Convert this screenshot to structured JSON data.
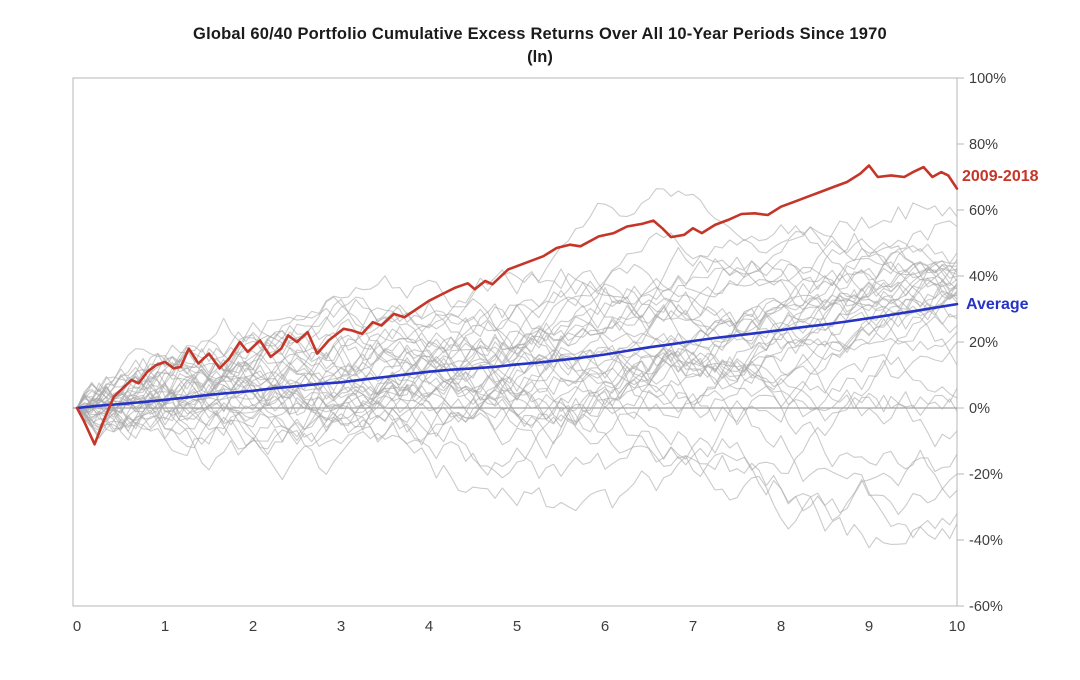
{
  "colors": {
    "red": "#c53528",
    "blue": "#2633c4",
    "gray_line": "#a9a9a9",
    "frame": "#b7b7b7",
    "zero_line": "#8c8c8c",
    "tick_text": "#3d3d3d",
    "title_text": "#1b1b1b"
  },
  "chart_data": {
    "type": "line",
    "title": "Global 60/40 Portfolio Cumulative Excess Returns Over All 10-Year Periods Since 1970",
    "subtitle": "(ln)",
    "xlabel": "",
    "ylabel": "",
    "xlim": [
      0,
      10
    ],
    "ylim": [
      -60,
      100
    ],
    "grid": "zero-line-only",
    "legend_position": "right-of-lines",
    "x_axis": {
      "ticks": [
        {
          "v": 0,
          "label": "0"
        },
        {
          "v": 1,
          "label": "1"
        },
        {
          "v": 2,
          "label": "2"
        },
        {
          "v": 3,
          "label": "3"
        },
        {
          "v": 4,
          "label": "4"
        },
        {
          "v": 5,
          "label": "5"
        },
        {
          "v": 6,
          "label": "6"
        },
        {
          "v": 7,
          "label": "7"
        },
        {
          "v": 8,
          "label": "8"
        },
        {
          "v": 9,
          "label": "9"
        },
        {
          "v": 10,
          "label": "10"
        }
      ]
    },
    "y_axis": {
      "ticks": [
        {
          "v": 100,
          "label": "100%"
        },
        {
          "v": 80,
          "label": "80%"
        },
        {
          "v": 60,
          "label": "60%"
        },
        {
          "v": 40,
          "label": "40%"
        },
        {
          "v": 20,
          "label": "20%"
        },
        {
          "v": 0,
          "label": "0%"
        },
        {
          "v": -20,
          "label": "-20%"
        },
        {
          "v": -40,
          "label": "-40%"
        },
        {
          "v": -60,
          "label": "-60%"
        }
      ]
    },
    "series": [
      {
        "name": "2009-2018",
        "color": "#c53528",
        "width": 2.6,
        "points": [
          [
            0,
            0
          ],
          [
            0.08,
            -4
          ],
          [
            0.2,
            -11
          ],
          [
            0.3,
            -4
          ],
          [
            0.42,
            3.5
          ],
          [
            0.52,
            6
          ],
          [
            0.62,
            8.5
          ],
          [
            0.7,
            7.5
          ],
          [
            0.8,
            11
          ],
          [
            0.9,
            13
          ],
          [
            1.0,
            14
          ],
          [
            1.1,
            12
          ],
          [
            1.18,
            12.5
          ],
          [
            1.27,
            18
          ],
          [
            1.38,
            13.5
          ],
          [
            1.5,
            16.5
          ],
          [
            1.62,
            12
          ],
          [
            1.73,
            15
          ],
          [
            1.85,
            20
          ],
          [
            1.94,
            17
          ],
          [
            2.08,
            20.5
          ],
          [
            2.2,
            15.5
          ],
          [
            2.32,
            18
          ],
          [
            2.4,
            22
          ],
          [
            2.5,
            20
          ],
          [
            2.62,
            23
          ],
          [
            2.73,
            16.5
          ],
          [
            2.86,
            20.5
          ],
          [
            3.03,
            24
          ],
          [
            3.12,
            23.5
          ],
          [
            3.24,
            22.5
          ],
          [
            3.36,
            26
          ],
          [
            3.46,
            25
          ],
          [
            3.6,
            28.5
          ],
          [
            3.72,
            27.5
          ],
          [
            3.86,
            30
          ],
          [
            4.0,
            32.5
          ],
          [
            4.15,
            34.5
          ],
          [
            4.3,
            36.5
          ],
          [
            4.44,
            37.8
          ],
          [
            4.52,
            36
          ],
          [
            4.64,
            38.5
          ],
          [
            4.72,
            37.5
          ],
          [
            4.9,
            42
          ],
          [
            5.1,
            44
          ],
          [
            5.3,
            46
          ],
          [
            5.45,
            48.5
          ],
          [
            5.6,
            49.5
          ],
          [
            5.72,
            49
          ],
          [
            5.93,
            52
          ],
          [
            6.1,
            53
          ],
          [
            6.25,
            55
          ],
          [
            6.42,
            55.8
          ],
          [
            6.55,
            56.8
          ],
          [
            6.65,
            54.5
          ],
          [
            6.75,
            51.8
          ],
          [
            6.9,
            52.5
          ],
          [
            7.0,
            54.5
          ],
          [
            7.1,
            53
          ],
          [
            7.25,
            55.5
          ],
          [
            7.4,
            57
          ],
          [
            7.55,
            58.8
          ],
          [
            7.7,
            59
          ],
          [
            7.85,
            58.5
          ],
          [
            8.0,
            61
          ],
          [
            8.15,
            62.5
          ],
          [
            8.3,
            64
          ],
          [
            8.45,
            65.5
          ],
          [
            8.6,
            67
          ],
          [
            8.75,
            68.5
          ],
          [
            8.9,
            71
          ],
          [
            9.0,
            73.5
          ],
          [
            9.1,
            70
          ],
          [
            9.25,
            70.5
          ],
          [
            9.4,
            70
          ],
          [
            9.5,
            71.5
          ],
          [
            9.62,
            73
          ],
          [
            9.72,
            70
          ],
          [
            9.82,
            71.5
          ],
          [
            9.9,
            70.5
          ],
          [
            10,
            66.5
          ]
        ]
      },
      {
        "name": "Average",
        "color": "#2633c4",
        "width": 2.6,
        "points": [
          [
            0,
            0
          ],
          [
            0.25,
            0.7
          ],
          [
            0.5,
            1.2
          ],
          [
            0.75,
            1.8
          ],
          [
            1,
            2.5
          ],
          [
            1.25,
            3.2
          ],
          [
            1.5,
            4
          ],
          [
            1.75,
            4.6
          ],
          [
            2,
            5.2
          ],
          [
            2.25,
            6
          ],
          [
            2.5,
            6.6
          ],
          [
            2.75,
            7.3
          ],
          [
            3,
            7.8
          ],
          [
            3.25,
            8.6
          ],
          [
            3.5,
            9.4
          ],
          [
            3.75,
            10.2
          ],
          [
            4,
            11
          ],
          [
            4.25,
            11.6
          ],
          [
            4.5,
            12
          ],
          [
            4.75,
            12.5
          ],
          [
            5,
            13.2
          ],
          [
            5.25,
            13.8
          ],
          [
            5.5,
            14.5
          ],
          [
            5.75,
            15.3
          ],
          [
            6,
            16.2
          ],
          [
            6.25,
            17.3
          ],
          [
            6.5,
            18.4
          ],
          [
            6.75,
            19.3
          ],
          [
            7,
            20.3
          ],
          [
            7.25,
            21.2
          ],
          [
            7.5,
            22
          ],
          [
            7.75,
            22.8
          ],
          [
            8,
            23.6
          ],
          [
            8.25,
            24.5
          ],
          [
            8.5,
            25.3
          ],
          [
            8.75,
            26.2
          ],
          [
            9,
            27.2
          ],
          [
            9.25,
            28.2
          ],
          [
            9.5,
            29.3
          ],
          [
            9.75,
            30.4
          ],
          [
            10,
            31.5
          ]
        ]
      }
    ],
    "background_series": {
      "description": "gray spaghetti lines: one per rolling 10-year period, all start at 0%; [seed, end_value_pct, volatility]",
      "color": "#a9a9a9",
      "opacity": 0.6,
      "width": 1.1,
      "n_points": 120,
      "soft_clamp": [
        -50,
        66
      ],
      "items": [
        [
          1,
          58,
          2.7
        ],
        [
          2,
          55,
          2.5
        ],
        [
          3,
          47,
          2.8
        ],
        [
          4,
          45,
          2.4
        ],
        [
          5,
          44,
          2.9
        ],
        [
          6,
          43,
          2.3
        ],
        [
          7,
          42.5,
          2.6
        ],
        [
          8,
          42,
          2.2
        ],
        [
          9,
          41,
          2.5
        ],
        [
          10,
          40.5,
          2.8
        ],
        [
          11,
          40,
          2.2
        ],
        [
          12,
          39,
          2.6
        ],
        [
          13,
          38.5,
          2.3
        ],
        [
          14,
          38,
          2.7
        ],
        [
          15,
          37.5,
          2.1
        ],
        [
          16,
          37,
          2.4
        ],
        [
          17,
          36.5,
          2.8
        ],
        [
          18,
          36,
          2.2
        ],
        [
          19,
          35.5,
          2.5
        ],
        [
          20,
          35,
          2.3
        ],
        [
          21,
          34.5,
          2.6
        ],
        [
          22,
          34,
          2.4
        ],
        [
          23,
          33,
          2.2
        ],
        [
          24,
          32,
          2.5
        ],
        [
          25,
          28,
          2.7
        ],
        [
          26,
          27,
          2.4
        ],
        [
          27,
          25,
          2.6
        ],
        [
          28,
          23,
          2.5
        ],
        [
          29,
          20,
          2.7
        ],
        [
          30,
          13,
          2.8
        ],
        [
          31,
          6,
          2.8
        ],
        [
          32,
          3,
          2.6
        ],
        [
          33,
          -1,
          2.9
        ],
        [
          34,
          -7,
          2.7
        ],
        [
          35,
          -14,
          3.0
        ],
        [
          36,
          -20,
          2.8
        ],
        [
          37,
          -25,
          3.0
        ],
        [
          38,
          -32,
          2.9
        ],
        [
          39,
          -35,
          3.1
        ]
      ]
    }
  }
}
